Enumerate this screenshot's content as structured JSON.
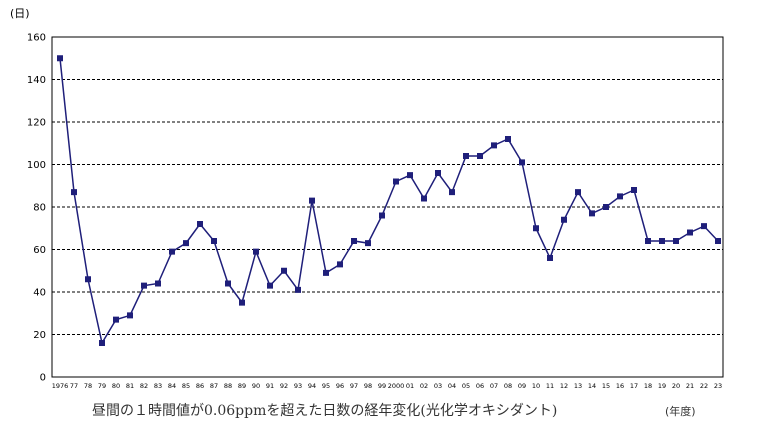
{
  "chart_data": {
    "type": "line",
    "title": "昼間の１時間値が0.06ppmを超えた日数の経年変化(光化学オキシダント)",
    "ylabel": "(日)",
    "xlabel": "(年度)",
    "ylim": [
      0,
      160
    ],
    "yticks": [
      "0",
      "20",
      "40",
      "60",
      "80",
      "100",
      "120",
      "140",
      "160"
    ],
    "grid": "dashed horizontal",
    "line_color": "#1f1f7a",
    "x": [
      "1976",
      "77",
      "78",
      "79",
      "80",
      "81",
      "82",
      "83",
      "84",
      "85",
      "86",
      "87",
      "88",
      "89",
      "90",
      "91",
      "92",
      "93",
      "94",
      "95",
      "96",
      "97",
      "98",
      "99",
      "2000",
      "01",
      "02",
      "03",
      "04",
      "05",
      "06",
      "07",
      "08",
      "09",
      "10",
      "11",
      "12",
      "13",
      "14",
      "15",
      "16",
      "17",
      "18",
      "19",
      "20",
      "21",
      "22",
      "23"
    ],
    "series": [
      {
        "values": [
          150,
          87,
          46,
          16,
          27,
          29,
          43,
          44,
          59,
          63,
          72,
          64,
          44,
          35,
          59,
          43,
          50,
          41,
          83,
          49,
          53,
          64,
          63,
          76,
          92,
          95,
          84,
          96,
          87,
          104,
          104,
          109,
          112,
          101,
          70,
          56,
          74,
          87,
          77,
          80,
          85,
          88,
          64,
          64,
          64,
          68,
          71,
          64
        ]
      }
    ]
  }
}
